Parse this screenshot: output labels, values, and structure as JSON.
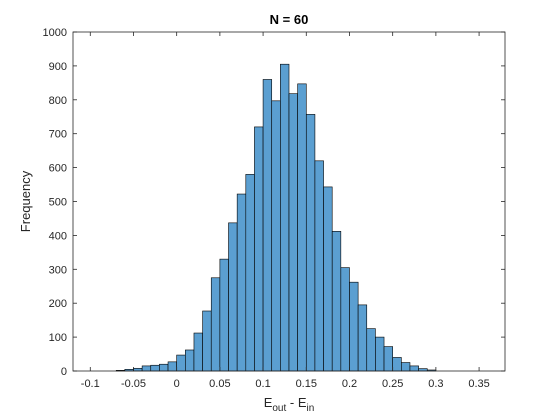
{
  "chart_data": {
    "type": "bar",
    "subtype": "histogram",
    "title": "N = 60",
    "xlabel": {
      "main": "E",
      "sub1": "out",
      "middle": " - E",
      "sub2": "in"
    },
    "ylabel": "Frequency",
    "xlim": [
      -0.12,
      0.38
    ],
    "ylim": [
      0,
      1000
    ],
    "xticks": [
      -0.1,
      -0.05,
      0,
      0.05,
      0.1,
      0.15,
      0.2,
      0.25,
      0.3,
      0.35
    ],
    "xtick_labels": [
      "-0.1",
      "-0.05",
      "0",
      "0.05",
      "0.1",
      "0.15",
      "0.2",
      "0.25",
      "0.3",
      "0.35"
    ],
    "yticks": [
      0,
      100,
      200,
      300,
      400,
      500,
      600,
      700,
      800,
      900,
      1000
    ],
    "ytick_labels": [
      "0",
      "100",
      "200",
      "300",
      "400",
      "500",
      "600",
      "700",
      "800",
      "900",
      "1000"
    ],
    "bin_width": 0.01,
    "bins": [
      {
        "x0": -0.07,
        "x1": -0.06,
        "value": 2
      },
      {
        "x0": -0.06,
        "x1": -0.05,
        "value": 5
      },
      {
        "x0": -0.05,
        "x1": -0.04,
        "value": 8
      },
      {
        "x0": -0.04,
        "x1": -0.03,
        "value": 15
      },
      {
        "x0": -0.03,
        "x1": -0.02,
        "value": 17
      },
      {
        "x0": -0.02,
        "x1": -0.01,
        "value": 20
      },
      {
        "x0": -0.01,
        "x1": 0.0,
        "value": 27
      },
      {
        "x0": 0.0,
        "x1": 0.01,
        "value": 47
      },
      {
        "x0": 0.01,
        "x1": 0.02,
        "value": 62
      },
      {
        "x0": 0.02,
        "x1": 0.03,
        "value": 112
      },
      {
        "x0": 0.03,
        "x1": 0.04,
        "value": 177
      },
      {
        "x0": 0.04,
        "x1": 0.05,
        "value": 275
      },
      {
        "x0": 0.05,
        "x1": 0.06,
        "value": 330
      },
      {
        "x0": 0.06,
        "x1": 0.07,
        "value": 437
      },
      {
        "x0": 0.07,
        "x1": 0.08,
        "value": 522
      },
      {
        "x0": 0.08,
        "x1": 0.09,
        "value": 580
      },
      {
        "x0": 0.09,
        "x1": 0.1,
        "value": 720
      },
      {
        "x0": 0.1,
        "x1": 0.11,
        "value": 860
      },
      {
        "x0": 0.11,
        "x1": 0.12,
        "value": 797
      },
      {
        "x0": 0.12,
        "x1": 0.13,
        "value": 905
      },
      {
        "x0": 0.13,
        "x1": 0.14,
        "value": 818
      },
      {
        "x0": 0.14,
        "x1": 0.15,
        "value": 847
      },
      {
        "x0": 0.15,
        "x1": 0.16,
        "value": 757
      },
      {
        "x0": 0.16,
        "x1": 0.17,
        "value": 620
      },
      {
        "x0": 0.17,
        "x1": 0.18,
        "value": 543
      },
      {
        "x0": 0.18,
        "x1": 0.19,
        "value": 412
      },
      {
        "x0": 0.19,
        "x1": 0.2,
        "value": 305
      },
      {
        "x0": 0.2,
        "x1": 0.21,
        "value": 262
      },
      {
        "x0": 0.21,
        "x1": 0.22,
        "value": 195
      },
      {
        "x0": 0.22,
        "x1": 0.23,
        "value": 125
      },
      {
        "x0": 0.23,
        "x1": 0.24,
        "value": 100
      },
      {
        "x0": 0.24,
        "x1": 0.25,
        "value": 72
      },
      {
        "x0": 0.25,
        "x1": 0.26,
        "value": 40
      },
      {
        "x0": 0.26,
        "x1": 0.27,
        "value": 25
      },
      {
        "x0": 0.27,
        "x1": 0.28,
        "value": 15
      },
      {
        "x0": 0.28,
        "x1": 0.29,
        "value": 7
      },
      {
        "x0": 0.29,
        "x1": 0.3,
        "value": 3
      }
    ],
    "grid": false,
    "colors": {
      "bar_fill": "#5b9fd1",
      "bar_edge": "#000000",
      "axes": "#262626",
      "background": "#ffffff"
    }
  }
}
